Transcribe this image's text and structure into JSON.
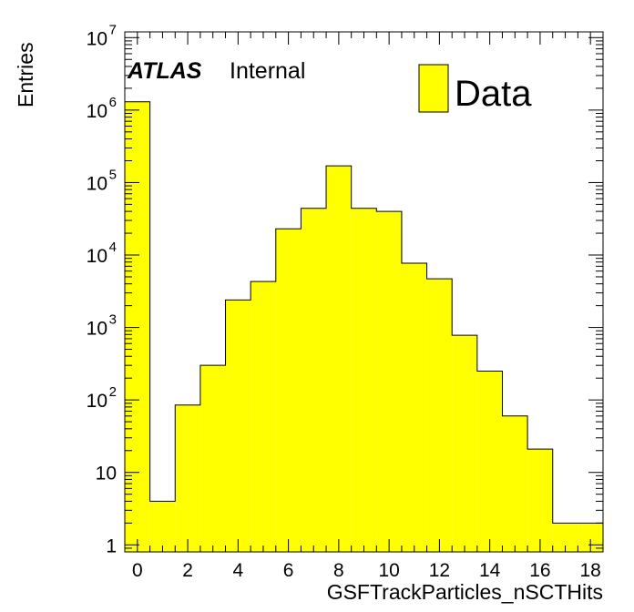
{
  "chart_data": {
    "type": "bar",
    "title": "",
    "xlabel": "GSFTrackParticles_nSCTHits",
    "ylabel": "Entries",
    "yscale": "log",
    "xlim": [
      -0.5,
      18.5
    ],
    "ylim": [
      0.8,
      12000000
    ],
    "grid": false,
    "legend_position": "top-right",
    "bar_color": "#ffff00",
    "bin_edges": [
      -0.5,
      0.5,
      1.5,
      2.5,
      3.5,
      4.5,
      5.5,
      6.5,
      7.5,
      8.5,
      9.5,
      10.5,
      11.5,
      12.5,
      13.5,
      14.5,
      15.5,
      16.5,
      17.5,
      18.5
    ],
    "series": [
      {
        "name": "Data",
        "values": [
          1300000,
          4,
          85,
          300,
          2400,
          4300,
          23000,
          44000,
          170000,
          44000,
          40000,
          7700,
          4700,
          780,
          250,
          60,
          21,
          2,
          2
        ]
      }
    ],
    "x_ticks": [
      {
        "value": 0,
        "label": "0"
      },
      {
        "value": 2,
        "label": "2"
      },
      {
        "value": 4,
        "label": "4"
      },
      {
        "value": 6,
        "label": "6"
      },
      {
        "value": 8,
        "label": "8"
      },
      {
        "value": 10,
        "label": "10"
      },
      {
        "value": 12,
        "label": "12"
      },
      {
        "value": 14,
        "label": "14"
      },
      {
        "value": 16,
        "label": "16"
      },
      {
        "value": 18,
        "label": "18"
      }
    ],
    "y_ticks": [
      {
        "value": 1,
        "base": "1",
        "exp": ""
      },
      {
        "value": 10,
        "base": "10",
        "exp": ""
      },
      {
        "value": 100,
        "base": "10",
        "exp": "2"
      },
      {
        "value": 1000,
        "base": "10",
        "exp": "3"
      },
      {
        "value": 10000,
        "base": "10",
        "exp": "4"
      },
      {
        "value": 100000,
        "base": "10",
        "exp": "5"
      },
      {
        "value": 1000000,
        "base": "10",
        "exp": "6"
      },
      {
        "value": 10000000,
        "base": "10",
        "exp": "7"
      }
    ],
    "annotation": {
      "experiment": "ATLAS",
      "status": "Internal"
    }
  }
}
